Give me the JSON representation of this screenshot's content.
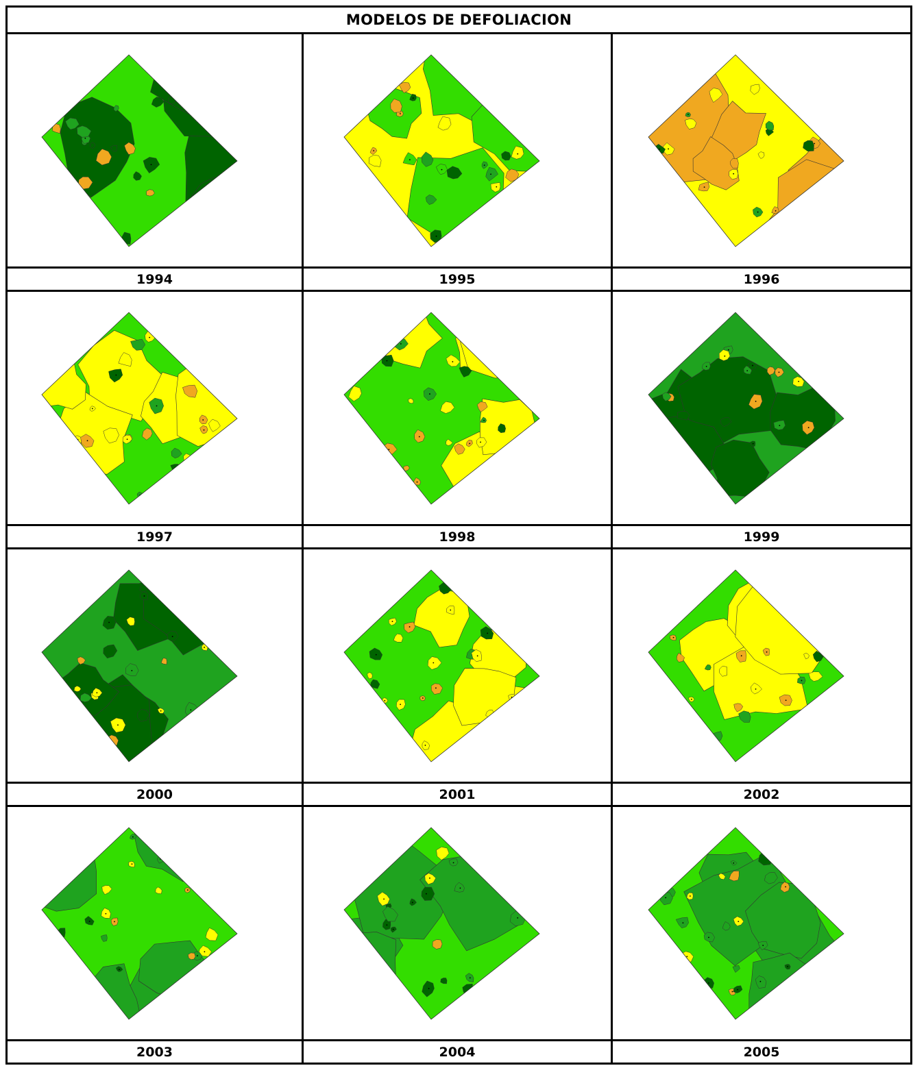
{
  "title": "MODELOS DE DEFOLIACION",
  "palette": {
    "class_0": "#006400",
    "class_1": "#1fa31f",
    "class_2": "#33dd00",
    "class_3": "#ffff00",
    "class_4": "#f0a820",
    "class_5": "#c86400",
    "water": "#0000cc",
    "outline": "#333333"
  },
  "maps": [
    {
      "year": "1994",
      "base": "class_2",
      "dominant": "class_0"
    },
    {
      "year": "1995",
      "base": "class_3",
      "dominant": "class_2"
    },
    {
      "year": "1996",
      "base": "class_3",
      "dominant": "class_4"
    },
    {
      "year": "1997",
      "base": "class_2",
      "dominant": "class_3"
    },
    {
      "year": "1998",
      "base": "class_2",
      "dominant": "class_3"
    },
    {
      "year": "1999",
      "base": "class_1",
      "dominant": "class_0"
    },
    {
      "year": "2000",
      "base": "class_1",
      "dominant": "class_0"
    },
    {
      "year": "2001",
      "base": "class_2",
      "dominant": "class_3"
    },
    {
      "year": "2002",
      "base": "class_2",
      "dominant": "class_3"
    },
    {
      "year": "2003",
      "base": "class_2",
      "dominant": "class_1"
    },
    {
      "year": "2004",
      "base": "class_2",
      "dominant": "class_1"
    },
    {
      "year": "2005",
      "base": "class_2",
      "dominant": "class_1"
    }
  ]
}
